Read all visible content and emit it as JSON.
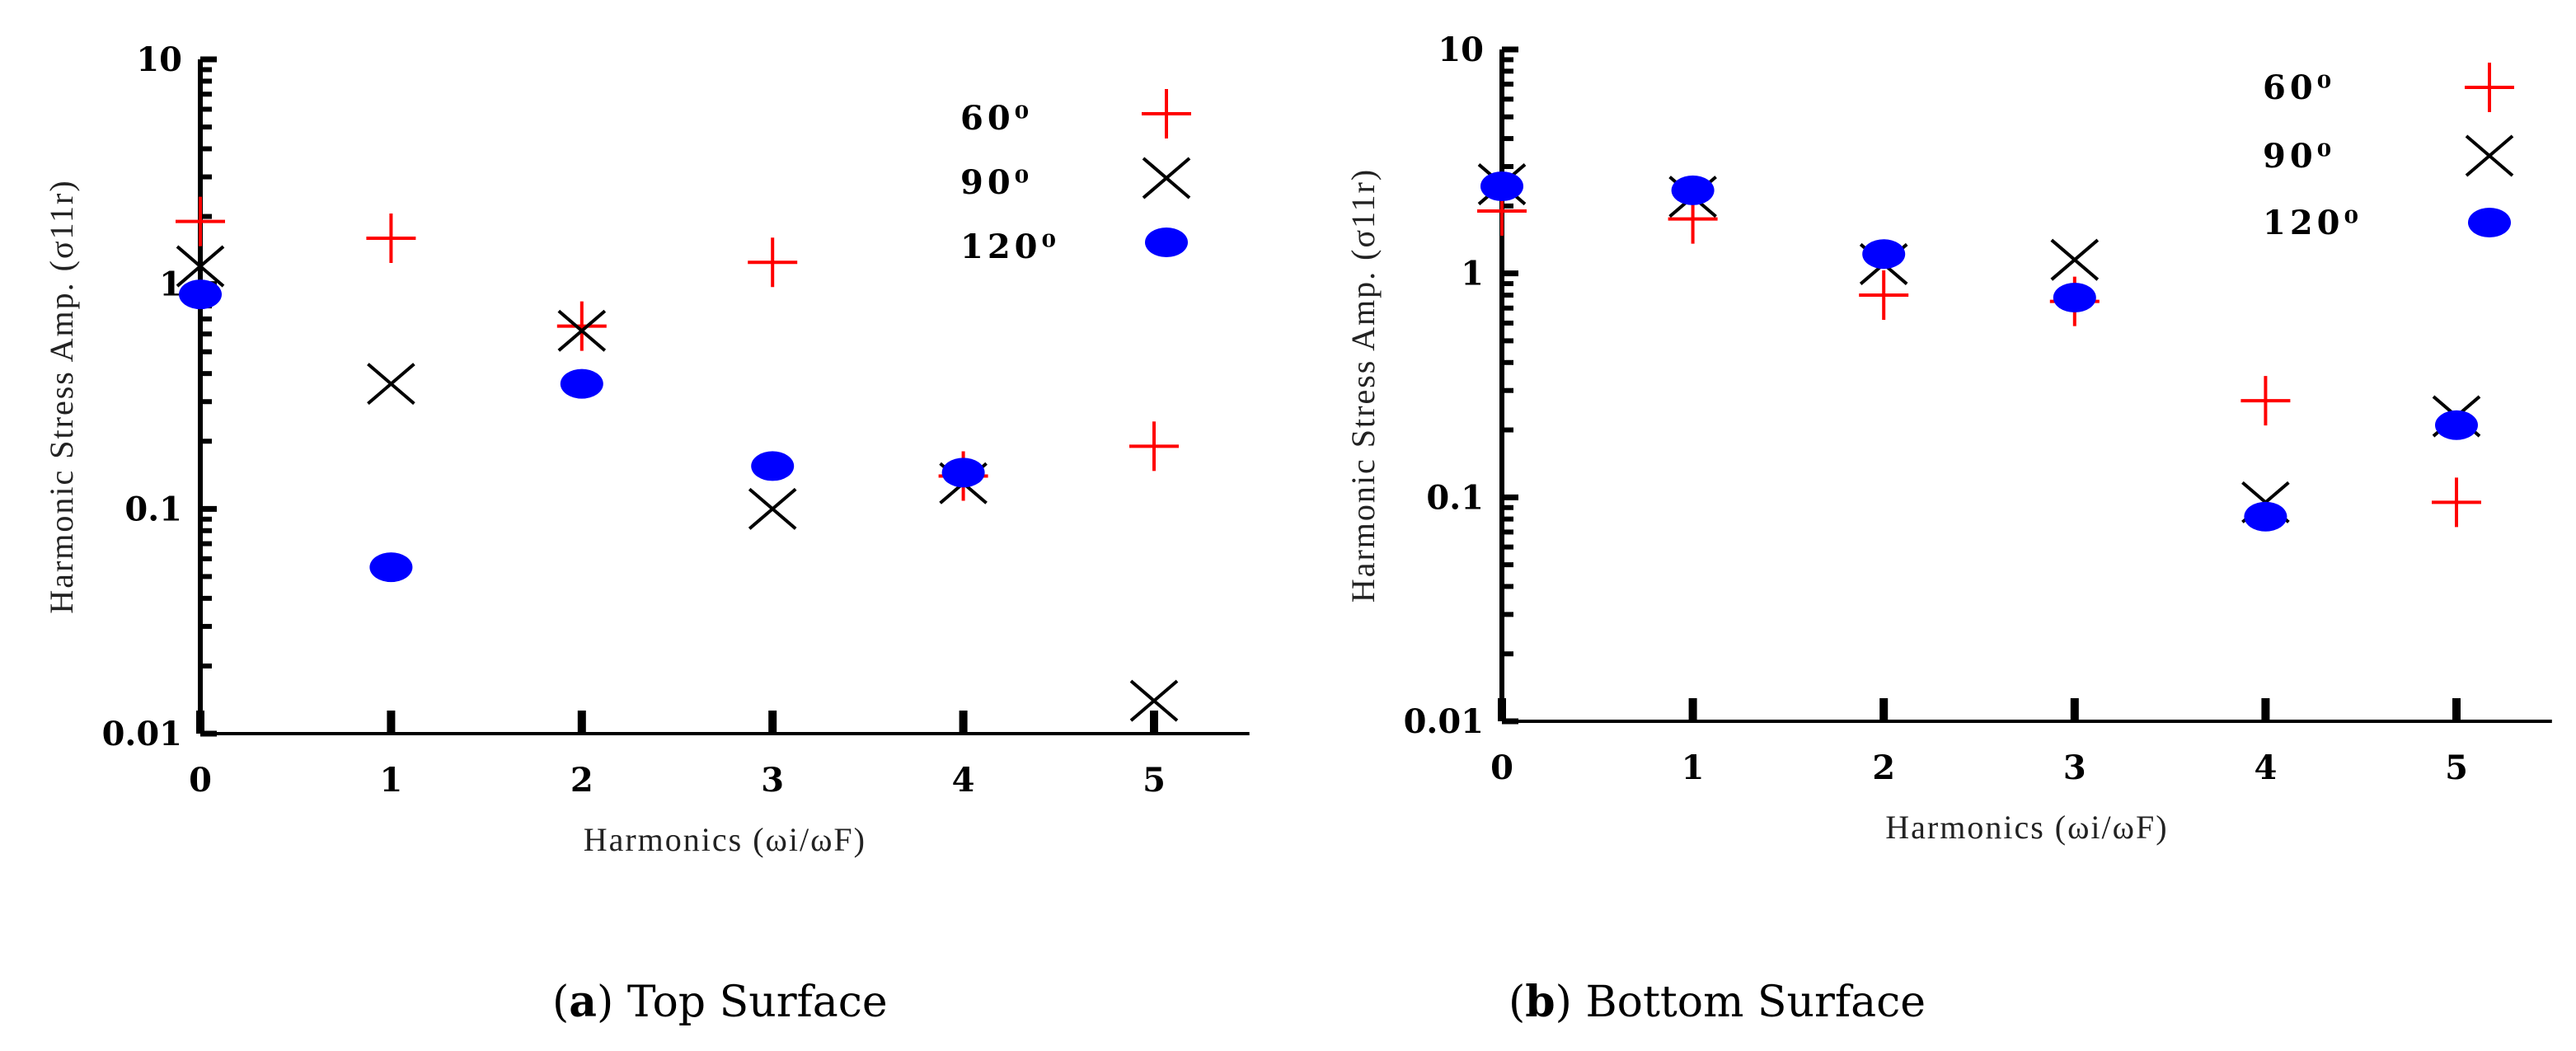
{
  "chart_data": [
    {
      "type": "scatter",
      "caption_letter": "a",
      "caption_text": "Top Surface",
      "xlabel": "Harmonics (ωi/ωF)",
      "ylabel": "Harmonic Stress Amp. (σ11r)",
      "x_ticks": [
        0,
        1,
        2,
        3,
        4,
        5
      ],
      "x_tick_labels": [
        "0",
        "1",
        "2",
        "3",
        "4",
        "5"
      ],
      "xlim": [
        0,
        5.5
      ],
      "y_scale": "log",
      "ylim": [
        0.01,
        10
      ],
      "y_tick_labels": [
        "0.01",
        "0.1",
        "1",
        "10"
      ],
      "legend": [
        "60⁰",
        "90⁰",
        "120⁰"
      ],
      "series": [
        {
          "name": "60⁰",
          "marker": "plus",
          "color": "#ff0000",
          "x": [
            0,
            1,
            2,
            3,
            4,
            5
          ],
          "y": [
            1.9,
            1.6,
            0.65,
            1.25,
            0.14,
            0.19
          ]
        },
        {
          "name": "90⁰",
          "marker": "x",
          "color": "#000000",
          "x": [
            0,
            1,
            2,
            3,
            4,
            5
          ],
          "y": [
            1.2,
            0.36,
            0.62,
            0.1,
            0.13,
            0.014
          ]
        },
        {
          "name": "120⁰",
          "marker": "dot",
          "color": "#0000ff",
          "x": [
            0,
            1,
            2,
            3,
            4,
            5
          ],
          "y": [
            0.9,
            0.055,
            0.36,
            0.155,
            0.145,
            null
          ]
        }
      ]
    },
    {
      "type": "scatter",
      "caption_letter": "b",
      "caption_text": "Bottom Surface",
      "xlabel": "Harmonics (ωi/ωF)",
      "ylabel": "Harmonic Stress Amp. (σ11r)",
      "x_ticks": [
        0,
        1,
        2,
        3,
        4,
        5
      ],
      "x_tick_labels": [
        "0",
        "1",
        "2",
        "3",
        "4",
        "5"
      ],
      "xlim": [
        0,
        5.5
      ],
      "y_scale": "log",
      "ylim": [
        0.01,
        10
      ],
      "y_tick_labels": [
        "0.01",
        "0.1",
        "1",
        "10"
      ],
      "legend": [
        "60⁰",
        "90⁰",
        "120⁰"
      ],
      "series": [
        {
          "name": "60⁰",
          "marker": "plus",
          "color": "#ff0000",
          "x": [
            0,
            1,
            2,
            3,
            4,
            5
          ],
          "y": [
            1.9,
            1.75,
            0.8,
            0.75,
            0.27,
            0.095
          ]
        },
        {
          "name": "90⁰",
          "marker": "x",
          "color": "#000000",
          "x": [
            0,
            1,
            2,
            3,
            4,
            5
          ],
          "y": [
            2.5,
            2.2,
            1.1,
            1.15,
            0.095,
            0.23
          ]
        },
        {
          "name": "120⁰",
          "marker": "dot",
          "color": "#0000ff",
          "x": [
            0,
            1,
            2,
            3,
            4,
            5
          ],
          "y": [
            2.45,
            2.35,
            1.22,
            0.78,
            0.082,
            0.21
          ]
        }
      ]
    }
  ]
}
